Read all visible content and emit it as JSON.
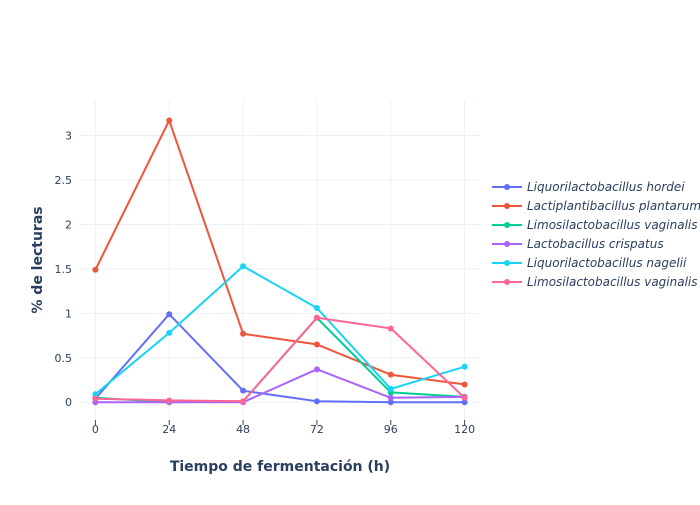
{
  "chart_data": {
    "type": "line",
    "xlabel": "Tiempo de fermentación (h)",
    "ylabel": "% de lecturas",
    "x": [
      0,
      24,
      48,
      72,
      96,
      120
    ],
    "xlim": [
      -5,
      125
    ],
    "ylim": [
      -0.2,
      3.4
    ],
    "x_ticks": [
      0,
      24,
      48,
      72,
      96,
      120
    ],
    "y_ticks": [
      0,
      0.5,
      1,
      1.5,
      2,
      2.5,
      3
    ],
    "y_tick_labels": [
      "0",
      "0.5",
      "1",
      "1.5",
      "2",
      "2.5",
      "3"
    ],
    "grid": true,
    "legend_position": "right",
    "series": [
      {
        "name": "Liquorilactobacillus hordei",
        "color": "#636efa",
        "values": [
          0.04,
          0.99,
          0.13,
          0.01,
          0.0,
          0.0
        ]
      },
      {
        "name": "Lactiplantibacillus plantarum",
        "color": "#ef553b",
        "values": [
          1.49,
          3.17,
          0.77,
          0.65,
          0.31,
          0.2
        ]
      },
      {
        "name": "Limosilactobacillus vaginalis",
        "color": "#00cc96",
        "values": [
          0.05,
          0.0,
          0.01,
          0.95,
          0.11,
          0.06
        ]
      },
      {
        "name": "Lactobacillus crispatus",
        "color": "#ab63fa",
        "values": [
          0.0,
          0.0,
          0.0,
          0.37,
          0.05,
          0.06
        ]
      },
      {
        "name": "Liquorilactobacillus nagelii",
        "color": "#19d3f3",
        "values": [
          0.09,
          0.78,
          1.53,
          1.06,
          0.15,
          0.4
        ]
      },
      {
        "name": "Limosilactobacillus vaginalis",
        "color": "#ff6692",
        "values": [
          0.04,
          0.02,
          0.01,
          0.95,
          0.83,
          0.05
        ]
      }
    ]
  }
}
